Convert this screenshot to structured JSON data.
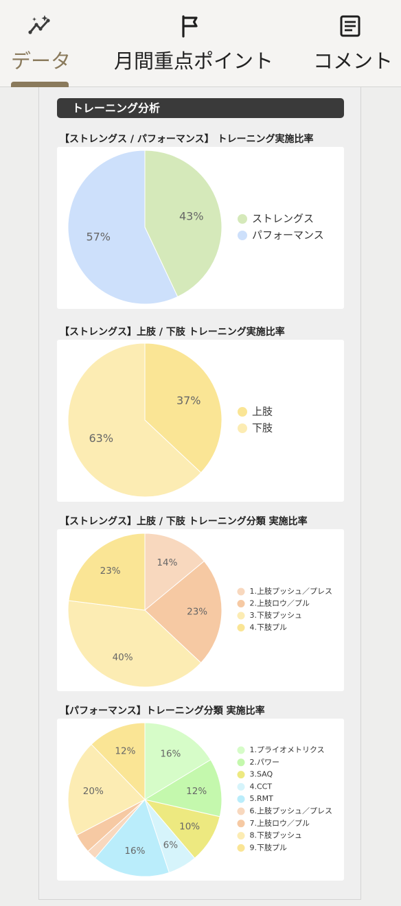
{
  "tabs": [
    {
      "label": "データ",
      "icon": "sparkline-icon",
      "active": true,
      "color": "#8a7a5c"
    },
    {
      "label": "月間重点ポイント",
      "icon": "flag-icon",
      "active": false
    },
    {
      "label": "コメント",
      "icon": "note-icon",
      "active": false
    }
  ],
  "section": {
    "title": "トレーニング分析"
  },
  "chart_data": [
    {
      "type": "pie",
      "title": "【ストレングス / パフォーマンス】 トレーニング実施比率",
      "categories": [
        "ストレングス",
        "パフォーマンス"
      ],
      "values": [
        43,
        57
      ],
      "labels": [
        "43%",
        "57%"
      ],
      "colors": [
        "#d5e9ba",
        "#cde0fb"
      ],
      "legend": "right"
    },
    {
      "type": "pie",
      "title": "【ストレングス】上肢 / 下肢 トレーニング実施比率",
      "categories": [
        "上肢",
        "下肢"
      ],
      "values": [
        37,
        63
      ],
      "labels": [
        "37%",
        "63%"
      ],
      "colors": [
        "#fae595",
        "#fcecb3"
      ],
      "legend": "right"
    },
    {
      "type": "pie",
      "title": "【ストレングス】上肢 / 下肢 トレーニング分類 実施比率",
      "categories": [
        "1.上肢プッシュ／プレス",
        "2.上肢ロウ／プル",
        "3.下肢プッシュ",
        "4.下肢プル"
      ],
      "values": [
        14,
        23,
        40,
        23
      ],
      "labels": [
        "14%",
        "23%",
        "40%",
        "23%"
      ],
      "colors": [
        "#f8d8be",
        "#f6c9a3",
        "#fcecb3",
        "#fae595"
      ],
      "legend": "right"
    },
    {
      "type": "pie",
      "title": "【パフォーマンス】トレーニング分類 実施比率",
      "categories": [
        "1.プライオメトリクス",
        "2.パワー",
        "3.SAQ",
        "4.CCT",
        "5.RMT",
        "6.上肢プッシュ／プレス",
        "7.上肢ロウ／プル",
        "8.下肢プッシュ",
        "9.下肢プル"
      ],
      "values": [
        16,
        12,
        10,
        6,
        16,
        2,
        4,
        20,
        12
      ],
      "labels": [
        "16%",
        "12%",
        "10%",
        "6%",
        "16%",
        "",
        "",
        "20%",
        "12%"
      ],
      "colors": [
        "#d6fcc8",
        "#c4f8ad",
        "#ede980",
        "#d6f4fb",
        "#baedfb",
        "#f8d8be",
        "#f6c9a3",
        "#fcecb3",
        "#fae595"
      ],
      "legend": "right"
    }
  ]
}
